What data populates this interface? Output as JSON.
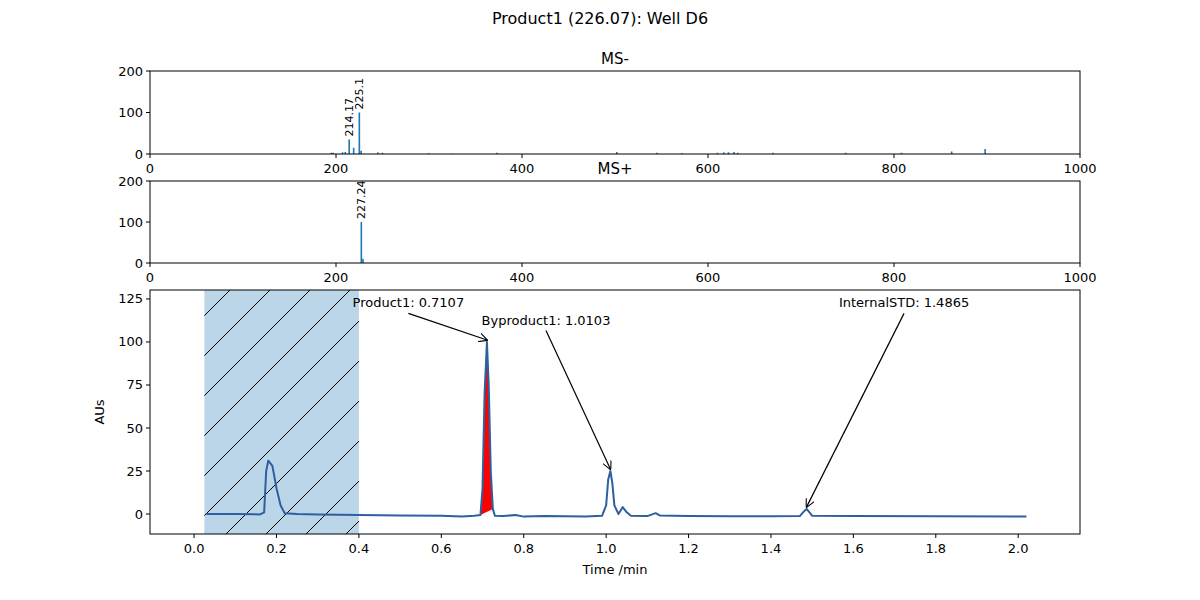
{
  "title": "Product1 (226.07): Well D6",
  "chart_data": [
    {
      "type": "bar",
      "title": "MS-",
      "x": [
        195,
        197,
        207,
        210,
        214.17,
        219,
        225.1,
        227,
        245,
        250,
        300,
        325,
        373,
        502,
        545,
        572,
        610,
        617,
        622,
        628,
        632,
        670,
        748,
        808,
        862,
        898
      ],
      "values": [
        3,
        3,
        4,
        5,
        35,
        15,
        100,
        8,
        4,
        3,
        2,
        1,
        3,
        5,
        3,
        2,
        3,
        4,
        4,
        5,
        3,
        3,
        3,
        3,
        6,
        12
      ],
      "color": "#1f77b4",
      "xlim": [
        0,
        1000
      ],
      "ylim": [
        0,
        200
      ],
      "xticks": [
        0,
        200,
        400,
        600,
        800,
        1000
      ],
      "yticks": [
        0,
        100,
        200
      ],
      "grid": false,
      "annotations": [
        {
          "text": "214.17",
          "x": 214.17,
          "y": 35
        },
        {
          "text": "225.1",
          "x": 225.1,
          "y": 100
        }
      ]
    },
    {
      "type": "bar",
      "title": "MS+",
      "x": [
        227.24,
        229
      ],
      "values": [
        100,
        10
      ],
      "color": "#1f77b4",
      "xlim": [
        0,
        1000
      ],
      "ylim": [
        0,
        200
      ],
      "xticks": [
        0,
        200,
        400,
        600,
        800,
        1000
      ],
      "yticks": [
        0,
        100,
        200
      ],
      "grid": false,
      "annotations": [
        {
          "text": "227.24",
          "x": 227.24,
          "y": 100
        }
      ]
    },
    {
      "type": "line",
      "xlabel": "Time /min",
      "ylabel": "AUs",
      "x": [
        0.03,
        0.1,
        0.16,
        0.17,
        0.175,
        0.18,
        0.19,
        0.2,
        0.21,
        0.22,
        0.25,
        0.3,
        0.4,
        0.5,
        0.6,
        0.65,
        0.68,
        0.695,
        0.7,
        0.705,
        0.7107,
        0.715,
        0.72,
        0.725,
        0.73,
        0.75,
        0.78,
        0.8,
        0.85,
        0.9,
        0.95,
        0.99,
        1.0,
        1.005,
        1.0103,
        1.015,
        1.02,
        1.03,
        1.04,
        1.05,
        1.06,
        1.1,
        1.12,
        1.13,
        1.2,
        1.3,
        1.4,
        1.47,
        1.48,
        1.4865,
        1.495,
        1.5,
        1.6,
        1.8,
        2.02
      ],
      "values": [
        0,
        0,
        -0.2,
        1,
        25,
        31,
        28,
        15,
        5,
        0.5,
        0,
        -0.2,
        -0.5,
        -0.8,
        -1.0,
        -1.5,
        -1.0,
        -0.5,
        15,
        70,
        100,
        75,
        25,
        3,
        -1,
        -1.2,
        -0.5,
        -1.5,
        -1.2,
        -1.3,
        -1.4,
        -1.0,
        5,
        20,
        25,
        18,
        5,
        0,
        4,
        1,
        -1,
        -1.2,
        0.5,
        -0.8,
        -1.2,
        -1.3,
        -1.3,
        -1.2,
        1.5,
        3,
        0.5,
        -1.0,
        -1.2,
        -1.3,
        -1.5
      ],
      "color": "#2e5f9e",
      "xlim": [
        -0.107,
        2.15
      ],
      "ylim": [
        -11.6,
        130.2
      ],
      "xticks": [
        {
          "value": 0,
          "label": "0.0"
        },
        0.2,
        0.4,
        0.6,
        0.8,
        {
          "value": 1,
          "label": "1.0"
        },
        1.2,
        1.4,
        1.6,
        1.8,
        {
          "value": 2,
          "label": "2.0"
        }
      ],
      "yticks": [
        0,
        25,
        50,
        75,
        100,
        125
      ],
      "grid": false,
      "shaded_region": {
        "start": 0.025,
        "end": 0.4,
        "color": "#1f77b4"
      },
      "filled_peak": {
        "start": 0.695,
        "end": 0.725,
        "color": "#ff0000"
      },
      "annotations": [
        {
          "text": "Product1: 0.7107",
          "x": 0.7107,
          "y": 100,
          "text_x": 0.52,
          "text_y": 123
        },
        {
          "text": "Byproduct1: 1.0103",
          "x": 1.0103,
          "y": 25,
          "text_x": 0.854,
          "text_y": 113
        },
        {
          "text": "InternalSTD: 1.4865",
          "x": 1.4865,
          "y": 3,
          "text_x": 1.723,
          "text_y": 123
        }
      ]
    }
  ]
}
